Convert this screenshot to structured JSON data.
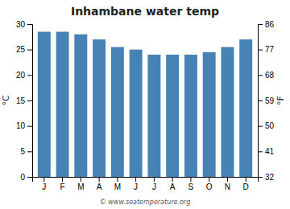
{
  "chart_data": {
    "type": "bar",
    "title": "Inhambane water temp",
    "categories": [
      "J",
      "F",
      "M",
      "A",
      "M",
      "J",
      "J",
      "A",
      "S",
      "O",
      "N",
      "D"
    ],
    "values": [
      28.5,
      28.5,
      28.0,
      27.0,
      25.5,
      25.0,
      24.0,
      24.0,
      24.0,
      24.5,
      25.5,
      27.0
    ],
    "ylabel": "°C",
    "y2label": "°F",
    "ylim": [
      0,
      30
    ],
    "yticks": [
      0,
      5,
      10,
      15,
      20,
      25,
      30
    ],
    "y2lim": [
      32,
      86
    ],
    "y2ticks": [
      32,
      41,
      50,
      59,
      68,
      77,
      86
    ],
    "grid": false,
    "annotations": [
      "© www.seatemperature.org"
    ]
  }
}
